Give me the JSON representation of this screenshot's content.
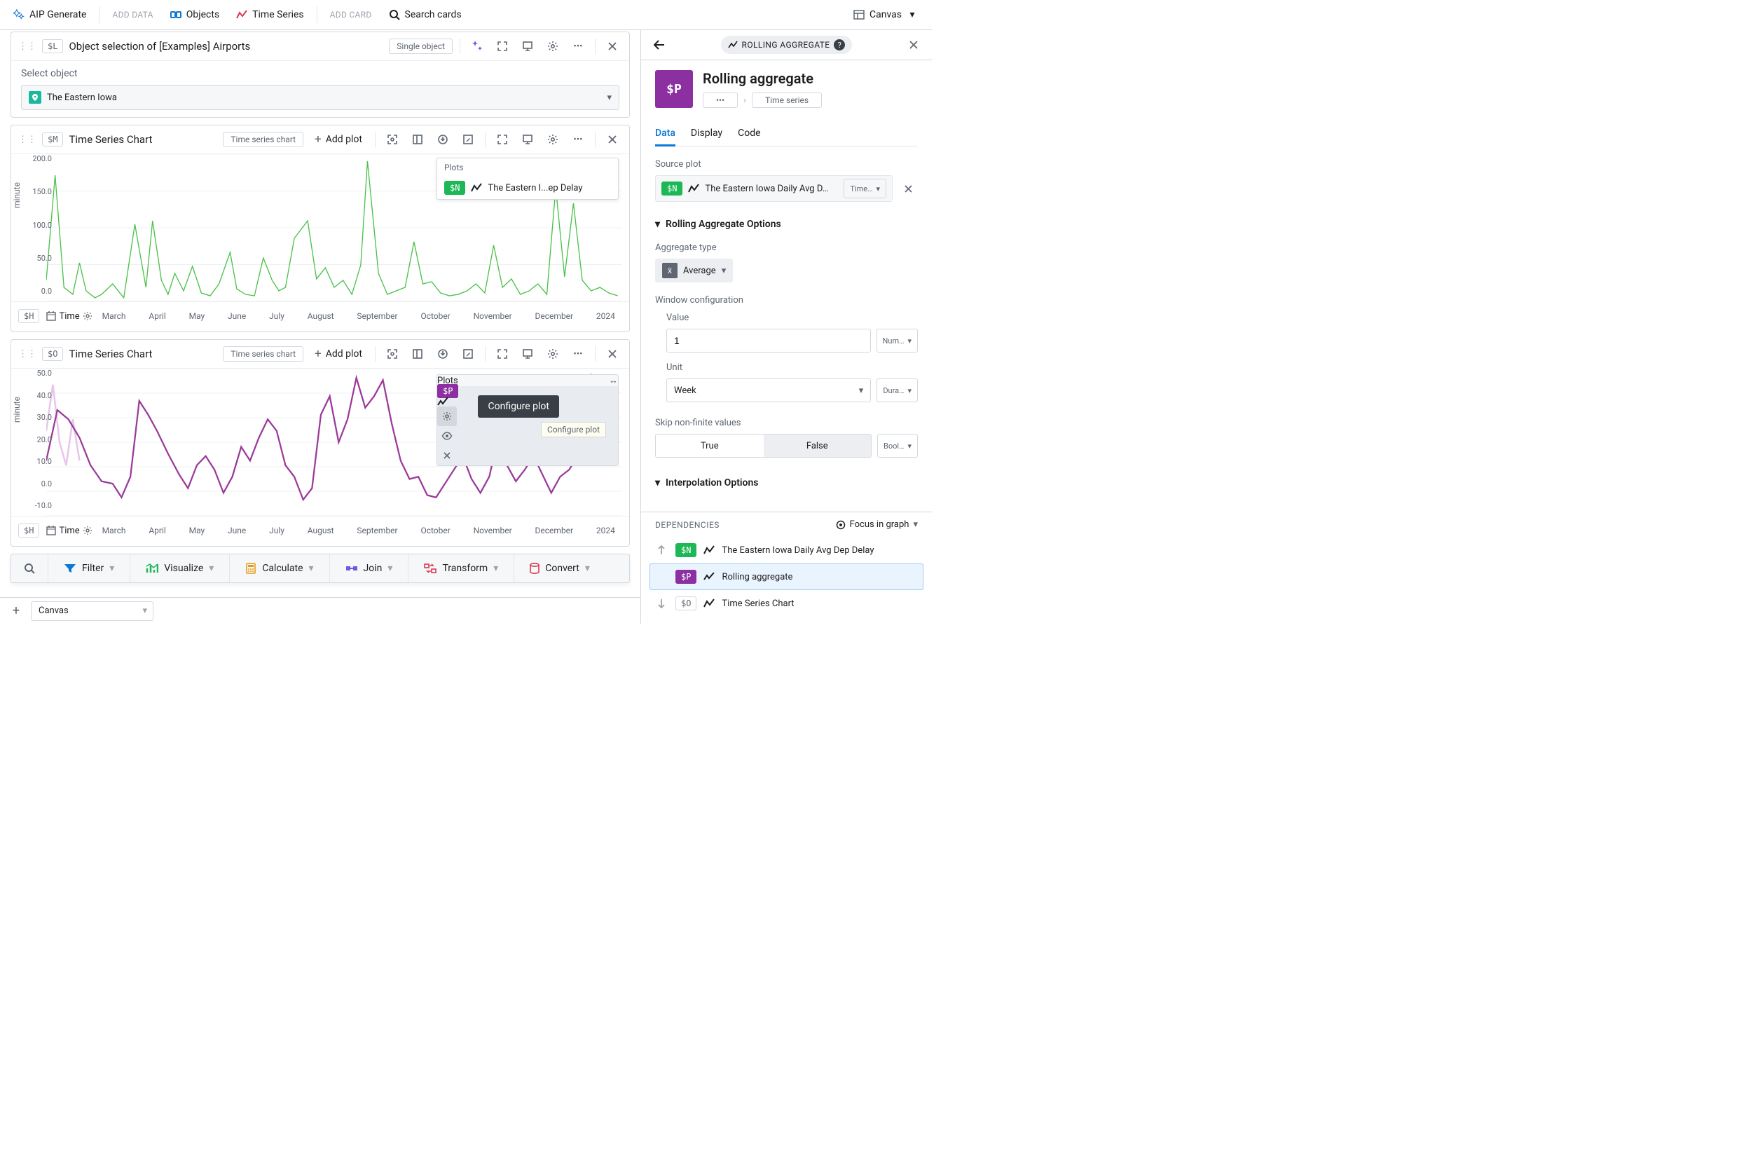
{
  "topbar": {
    "generate": "AIP Generate",
    "add_data": "ADD DATA",
    "objects": "Objects",
    "time_series": "Time Series",
    "add_card": "ADD CARD",
    "search": "Search cards",
    "canvas": "Canvas"
  },
  "cards": {
    "c1": {
      "var": "$L",
      "title": "Object selection of [Examples] Airports",
      "badge": "Single object",
      "select_label": "Select object",
      "select_value": "The Eastern Iowa"
    },
    "c2": {
      "var": "$M",
      "title": "Time Series Chart",
      "type_badge": "Time series chart",
      "add_plot": "Add plot",
      "plots_label": "Plots",
      "plot_var": "$N",
      "plot_name": "The Eastern I...ep Delay",
      "y_label": "minute",
      "y_ticks": [
        "0.0",
        "50.0",
        "100.0",
        "150.0",
        "200.0"
      ],
      "x_badge": "$H",
      "x_label": "Time",
      "months": [
        "March",
        "April",
        "May",
        "June",
        "July",
        "August",
        "September",
        "October",
        "November",
        "December",
        "2024"
      ],
      "chart": {
        "type": "line",
        "color": "#4ac24a",
        "background": "#ffffff",
        "grid_color": "#eef0f3",
        "ylim": [
          0,
          210
        ],
        "points": [
          [
            0,
            30
          ],
          [
            4,
            180
          ],
          [
            8,
            20
          ],
          [
            12,
            10
          ],
          [
            15,
            55
          ],
          [
            18,
            15
          ],
          [
            22,
            5
          ],
          [
            25,
            10
          ],
          [
            30,
            25
          ],
          [
            35,
            5
          ],
          [
            40,
            110
          ],
          [
            45,
            20
          ],
          [
            48,
            115
          ],
          [
            52,
            30
          ],
          [
            55,
            10
          ],
          [
            58,
            40
          ],
          [
            62,
            15
          ],
          [
            66,
            50
          ],
          [
            70,
            12
          ],
          [
            74,
            8
          ],
          [
            78,
            25
          ],
          [
            83,
            70
          ],
          [
            86,
            18
          ],
          [
            90,
            10
          ],
          [
            94,
            8
          ],
          [
            98,
            62
          ],
          [
            102,
            30
          ],
          [
            105,
            15
          ],
          [
            108,
            20
          ],
          [
            112,
            90
          ],
          [
            118,
            115
          ],
          [
            122,
            32
          ],
          [
            126,
            48
          ],
          [
            130,
            20
          ],
          [
            134,
            30
          ],
          [
            138,
            10
          ],
          [
            142,
            52
          ],
          [
            145,
            200
          ],
          [
            150,
            40
          ],
          [
            154,
            10
          ],
          [
            158,
            15
          ],
          [
            162,
            20
          ],
          [
            166,
            85
          ],
          [
            170,
            25
          ],
          [
            174,
            28
          ],
          [
            178,
            12
          ],
          [
            182,
            8
          ],
          [
            186,
            10
          ],
          [
            190,
            15
          ],
          [
            194,
            25
          ],
          [
            198,
            12
          ],
          [
            202,
            80
          ],
          [
            206,
            20
          ],
          [
            210,
            32
          ],
          [
            214,
            10
          ],
          [
            218,
            15
          ],
          [
            222,
            25
          ],
          [
            226,
            10
          ],
          [
            230,
            162
          ],
          [
            234,
            35
          ],
          [
            238,
            140
          ],
          [
            242,
            30
          ],
          [
            246,
            15
          ],
          [
            250,
            20
          ],
          [
            254,
            12
          ],
          [
            258,
            8
          ]
        ]
      }
    },
    "c3": {
      "var": "$O",
      "title": "Time Series Chart",
      "type_badge": "Time series chart",
      "add_plot": "Add plot",
      "plots_label": "Plots",
      "plot_var": "$P",
      "tooltip_dark": "Configure plot",
      "tooltip_light": "Configure plot",
      "y_label": "minute",
      "y_ticks": [
        "-10.0",
        "0.0",
        "10.0",
        "20.0",
        "30.0",
        "40.0",
        "50.0"
      ],
      "x_badge": "$H",
      "x_label": "Time",
      "months": [
        "March",
        "April",
        "May",
        "June",
        "July",
        "August",
        "September",
        "October",
        "November",
        "December",
        "2024"
      ],
      "chart": {
        "type": "line",
        "color": "#9a3a9a",
        "ghost_color": "#e7c7e9",
        "background": "#ffffff",
        "grid_color": "#eef0f3",
        "ylim": [
          -12,
          52
        ],
        "points": [
          [
            0,
            12
          ],
          [
            5,
            34
          ],
          [
            10,
            30
          ],
          [
            15,
            22
          ],
          [
            20,
            10
          ],
          [
            25,
            3
          ],
          [
            30,
            2
          ],
          [
            34,
            -4
          ],
          [
            38,
            5
          ],
          [
            42,
            38
          ],
          [
            46,
            32
          ],
          [
            50,
            25
          ],
          [
            55,
            15
          ],
          [
            60,
            6
          ],
          [
            64,
            0
          ],
          [
            68,
            10
          ],
          [
            72,
            14
          ],
          [
            76,
            8
          ],
          [
            80,
            -2
          ],
          [
            84,
            5
          ],
          [
            88,
            18
          ],
          [
            92,
            12
          ],
          [
            96,
            22
          ],
          [
            100,
            30
          ],
          [
            104,
            25
          ],
          [
            108,
            10
          ],
          [
            112,
            5
          ],
          [
            116,
            -5
          ],
          [
            120,
            0
          ],
          [
            124,
            32
          ],
          [
            128,
            40
          ],
          [
            132,
            20
          ],
          [
            136,
            30
          ],
          [
            140,
            48
          ],
          [
            144,
            35
          ],
          [
            148,
            40
          ],
          [
            152,
            47
          ],
          [
            156,
            28
          ],
          [
            160,
            12
          ],
          [
            164,
            4
          ],
          [
            168,
            5
          ],
          [
            172,
            -3
          ],
          [
            176,
            -4
          ],
          [
            180,
            2
          ],
          [
            184,
            8
          ],
          [
            188,
            14
          ],
          [
            192,
            4
          ],
          [
            196,
            -2
          ],
          [
            200,
            5
          ],
          [
            204,
            22
          ],
          [
            208,
            10
          ],
          [
            212,
            3
          ],
          [
            216,
            8
          ],
          [
            220,
            14
          ],
          [
            224,
            6
          ],
          [
            228,
            -2
          ],
          [
            232,
            5
          ],
          [
            236,
            8
          ],
          [
            240,
            14
          ],
          [
            244,
            44
          ],
          [
            248,
            30
          ],
          [
            252,
            15
          ],
          [
            256,
            20
          ]
        ],
        "ghost_points": [
          [
            0,
            25
          ],
          [
            3,
            45
          ],
          [
            6,
            20
          ],
          [
            9,
            10
          ],
          [
            12,
            30
          ],
          [
            15,
            12
          ]
        ],
        "ghost_points2": [
          [
            243,
            20
          ],
          [
            246,
            50
          ],
          [
            249,
            15
          ],
          [
            252,
            40
          ],
          [
            255,
            35
          ],
          [
            258,
            18
          ]
        ]
      }
    }
  },
  "actions": {
    "filter": "Filter",
    "visualize": "Visualize",
    "calculate": "Calculate",
    "join": "Join",
    "transform": "Transform",
    "convert": "Convert"
  },
  "footer": {
    "canvas": "Canvas"
  },
  "right": {
    "chip": "ROLLING AGGREGATE",
    "var": "$P",
    "title": "Rolling aggregate",
    "crumb1": "•••",
    "crumb_sep": "›",
    "crumb2": "Time series",
    "tabs": {
      "data": "Data",
      "display": "Display",
      "code": "Code"
    },
    "source_label": "Source plot",
    "source_var": "$N",
    "source_name": "The Eastern Iowa Daily Avg D…",
    "source_type": "Time…",
    "opts_head": "Rolling Aggregate Options",
    "agg_label": "Aggregate type",
    "agg_value": "Average",
    "window_label": "Window configuration",
    "value_label": "Value",
    "value_input": "1",
    "value_type": "Num…",
    "unit_label": "Unit",
    "unit_value": "Week",
    "unit_type": "Dura…",
    "skip_label": "Skip non-finite values",
    "skip_true": "True",
    "skip_false": "False",
    "skip_type": "Bool…",
    "interp_head": "Interpolation Options",
    "deps_head": "DEPENDENCIES",
    "deps_focus": "Focus in graph",
    "deps": [
      {
        "dir": "up",
        "var": "$N",
        "vclass": "green",
        "name": "The Eastern Iowa Daily Avg Dep Delay",
        "sel": false
      },
      {
        "dir": "cur",
        "var": "$P",
        "vclass": "purple",
        "name": "Rolling aggregate",
        "sel": true
      },
      {
        "dir": "down",
        "var": "$O",
        "vclass": "plain",
        "name": "Time Series Chart",
        "sel": false
      }
    ]
  },
  "colors": {
    "blue": "#0a78d6",
    "purple": "#8c2fa0",
    "green": "#1db855",
    "red_chart": "#d83a52",
    "grey": "#5f6671"
  }
}
